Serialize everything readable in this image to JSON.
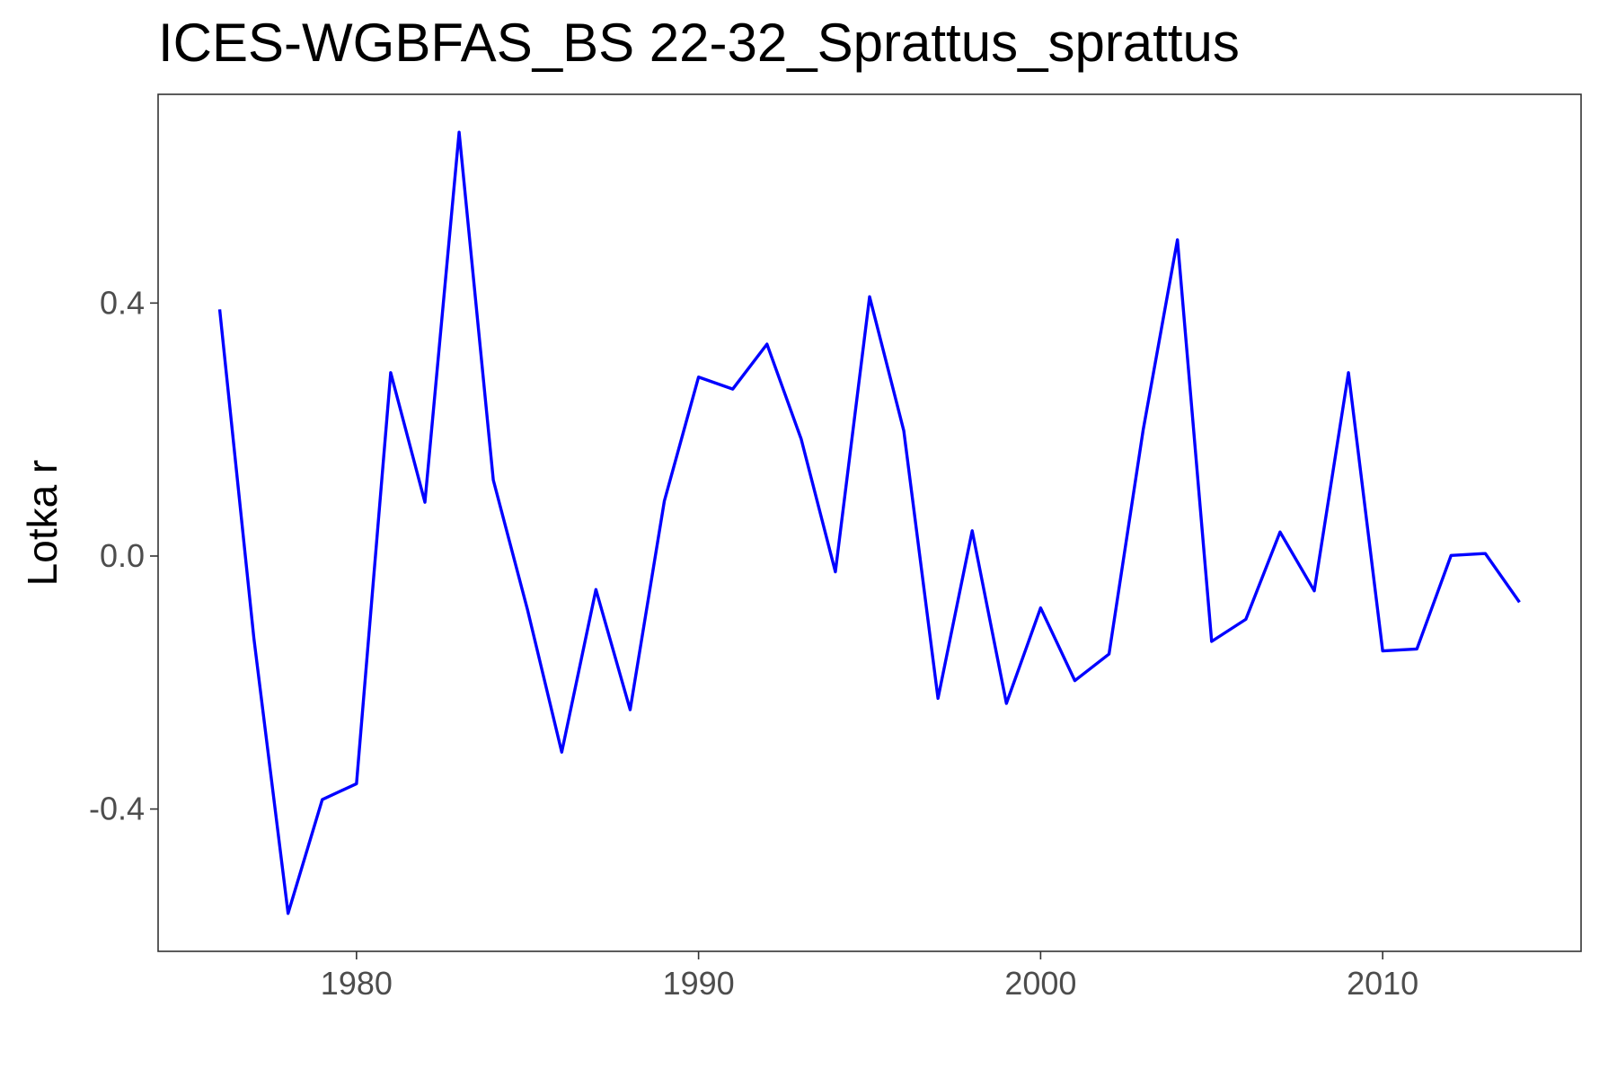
{
  "chart_data": {
    "type": "line",
    "title": "ICES-WGBFAS_BS 22-32_Sprattus_sprattus",
    "xlabel": "",
    "ylabel": "Lotka r",
    "x_ticks": [
      1980,
      1990,
      2000,
      2010
    ],
    "x_tick_labels": [
      "1980",
      "1990",
      "2000",
      "2010"
    ],
    "y_ticks": [
      -0.4,
      0.0,
      0.4
    ],
    "y_tick_labels": [
      "-0.4",
      "0.0",
      "0.4"
    ],
    "xlim": [
      1974.2,
      1975.8
    ],
    "ylim": [
      -0.625,
      0.73
    ],
    "grid": false,
    "legend": "none",
    "series": [
      {
        "color": "#0000ff",
        "x": [
          1976,
          1977,
          1978,
          1979,
          1980,
          1981,
          1982,
          1983,
          1984,
          1985,
          1986,
          1987,
          1988,
          1989,
          1990,
          1991,
          1992,
          1993,
          1994,
          1995,
          1996,
          1997,
          1998,
          1999,
          2000,
          2001,
          2002,
          2003,
          2004,
          2005,
          2006,
          2007,
          2008,
          2009,
          2010,
          2011,
          2012,
          2013,
          2014
        ],
        "y": [
          0.39,
          -0.13,
          -0.565,
          -0.385,
          -0.36,
          0.29,
          0.085,
          0.67,
          0.12,
          -0.085,
          -0.31,
          -0.053,
          -0.243,
          0.087,
          0.283,
          0.264,
          0.335,
          0.185,
          -0.025,
          0.41,
          0.198,
          -0.225,
          0.04,
          -0.233,
          -0.082,
          -0.197,
          -0.155,
          0.2,
          0.5,
          -0.135,
          -0.1,
          0.038,
          -0.055,
          0.29,
          -0.15,
          -0.147,
          0.001,
          0.004,
          -0.073
        ]
      }
    ]
  }
}
